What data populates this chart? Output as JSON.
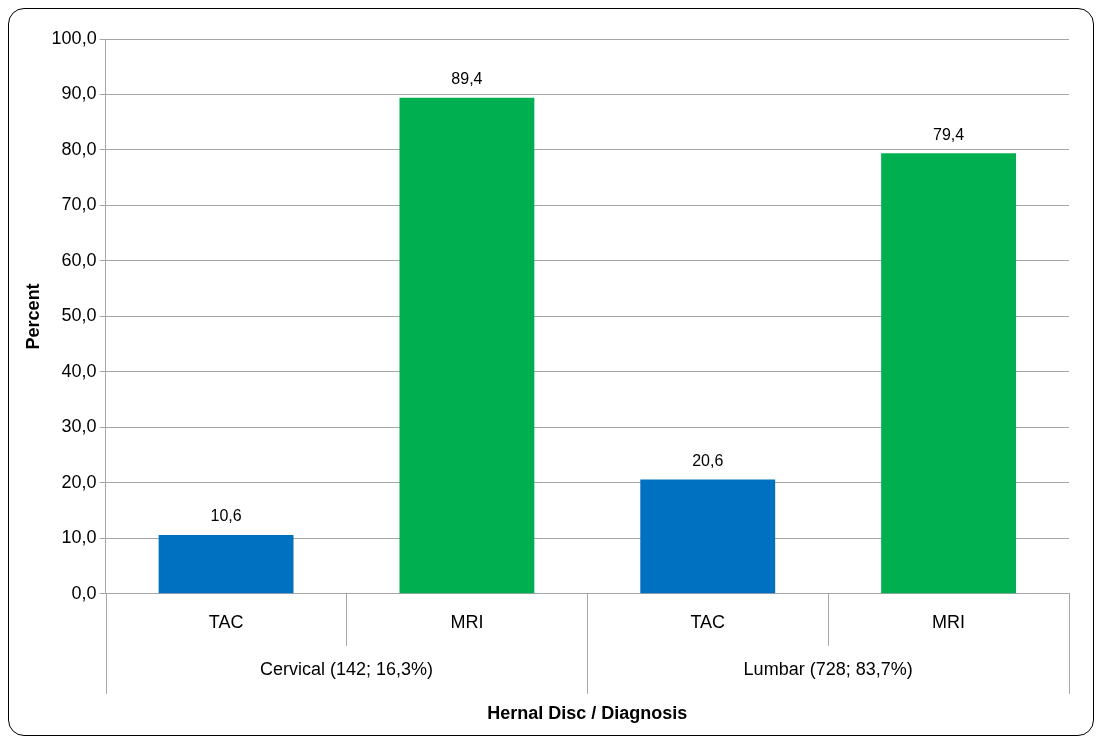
{
  "chart_data": {
    "type": "bar",
    "xlabel": "Hernal Disc / Diagnosis",
    "ylabel": "Percent",
    "categories": [
      "TAC",
      "MRI",
      "TAC",
      "MRI"
    ],
    "values": [
      10.6,
      89.4,
      20.6,
      79.4
    ],
    "colors": [
      "#0070c0",
      "#00b050",
      "#0070c0",
      "#00b050"
    ],
    "value_labels": [
      "10,6",
      "89,4",
      "20,6",
      "79,4"
    ],
    "annotations": [
      "Cervical (142; 16,3%)",
      "Lumbar (728; 83,7%)"
    ],
    "ylim": [
      0,
      100
    ],
    "yticks": [
      {
        "value": 0,
        "label": "0,0"
      },
      {
        "value": 10,
        "label": "10,0"
      },
      {
        "value": 20,
        "label": "20,0"
      },
      {
        "value": 30,
        "label": "30,0"
      },
      {
        "value": 40,
        "label": "40,0"
      },
      {
        "value": 50,
        "label": "50,0"
      },
      {
        "value": 60,
        "label": "60,0"
      },
      {
        "value": 70,
        "label": "70,0"
      },
      {
        "value": 80,
        "label": "80,0"
      },
      {
        "value": 90,
        "label": "90,0"
      },
      {
        "value": 100,
        "label": "100,0"
      }
    ],
    "grid": "y",
    "legend": false
  }
}
